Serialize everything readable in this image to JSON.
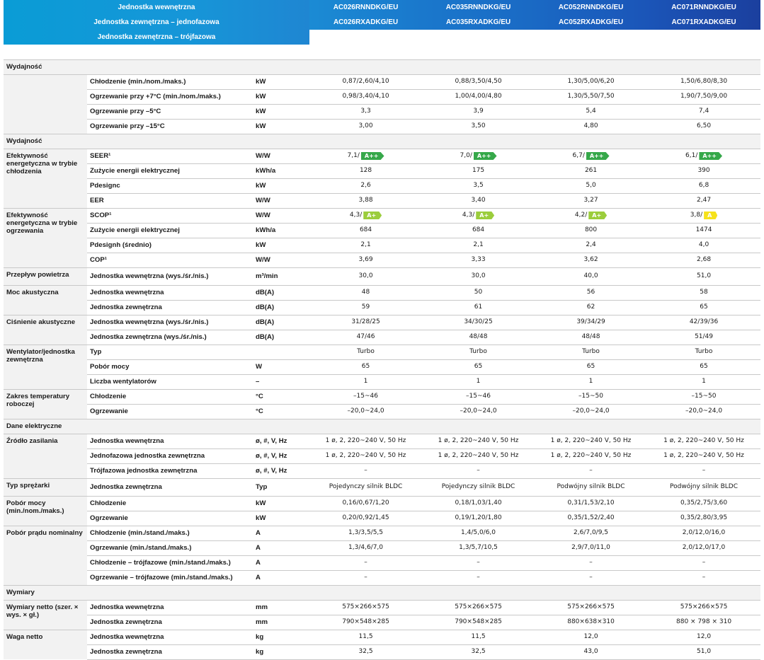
{
  "header": {
    "labels": [
      "Jednostka wewnętrzna",
      "Jednostka zewnętrzna – jednofazowa",
      "Jednostka zewnętrzna – trójfazowa"
    ],
    "models": [
      {
        "indoor": "AC026RNNDKG/EU",
        "outdoor": "AC026RXADKG/EU"
      },
      {
        "indoor": "AC035RNNDKG/EU",
        "outdoor": "AC035RXADKG/EU"
      },
      {
        "indoor": "AC052RNNDKG/EU",
        "outdoor": "AC052RXADKG/EU"
      },
      {
        "indoor": "AC071RNNDKG/EU",
        "outdoor": "AC071RXADKG/EU"
      }
    ]
  },
  "colors": {
    "badge_a_plus_plus": "#36a84a",
    "badge_a_plus": "#9bcd3c",
    "badge_a": "#f6e21a",
    "header_blue": "#1b55b8",
    "header_cyan": "#0a9cd6"
  },
  "sections": [
    {
      "title": "Wydajność",
      "groups": [
        {
          "label": "",
          "rows": [
            {
              "param": "Chłodzenie (min./nom./maks.)",
              "unit": "kW",
              "values": [
                "0,87/2,60/4,10",
                "0,88/3,50/4,50",
                "1,30/5,00/6,20",
                "1,50/6,80/8,30"
              ]
            },
            {
              "param": "Ogrzewanie przy +7°C (min./nom./maks.)",
              "unit": "kW",
              "values": [
                "0,98/3,40/4,10",
                "1,00/4,00/4,80",
                "1,30/5,50/7,50",
                "1,90/7,50/9,00"
              ]
            },
            {
              "param": "Ogrzewanie przy –5°C",
              "unit": "kW",
              "values": [
                "3,3",
                "3,9",
                "5,4",
                "7,4"
              ]
            },
            {
              "param": "Ogrzewanie przy –15°C",
              "unit": "kW",
              "values": [
                "3,00",
                "3,50",
                "4,80",
                "6,50"
              ]
            }
          ]
        }
      ]
    },
    {
      "title": "Wydajność",
      "groups": [
        {
          "label": "Efektywność energetyczna w trybie chłodzenia",
          "rows": [
            {
              "param": "SEER¹",
              "unit": "W/W",
              "values": [
                "7,1/",
                "7,0/",
                "6,7/",
                "6,1/"
              ],
              "badges": [
                "A++",
                "A++",
                "A++",
                "A++"
              ],
              "badge_kind": [
                "app",
                "app",
                "app",
                "app"
              ]
            },
            {
              "param": "Zużycie energii elektrycznej",
              "unit": "kWh/a",
              "values": [
                "128",
                "175",
                "261",
                "390"
              ]
            },
            {
              "param": "Pdesignc",
              "unit": "kW",
              "values": [
                "2,6",
                "3,5",
                "5,0",
                "6,8"
              ]
            },
            {
              "param": "EER",
              "unit": "W/W",
              "values": [
                "3,88",
                "3,40",
                "3,27",
                "2,47"
              ]
            }
          ]
        },
        {
          "label": "Efektywność energetyczna w trybie ogrzewania",
          "rows": [
            {
              "param": "SCOP¹",
              "unit": "W/W",
              "values": [
                "4,3/",
                "4,3/",
                "4,2/",
                "3,8/"
              ],
              "badges": [
                "A+",
                "A+",
                "A+",
                "A"
              ],
              "badge_kind": [
                "ap",
                "ap",
                "ap",
                "a"
              ]
            },
            {
              "param": "Zużycie energii elektrycznej",
              "unit": "kWh/a",
              "values": [
                "684",
                "684",
                "800",
                "1474"
              ]
            },
            {
              "param": "Pdesignh (średnio)",
              "unit": "kW",
              "values": [
                "2,1",
                "2,1",
                "2,4",
                "4,0"
              ]
            },
            {
              "param": "COP¹",
              "unit": "W/W",
              "values": [
                "3,69",
                "3,33",
                "3,62",
                "2,68"
              ]
            }
          ]
        },
        {
          "label": "Przepływ powietrza",
          "rows": [
            {
              "param": "Jednostka wewnętrzna (wys./śr./nis.)",
              "unit": "m³/min",
              "values": [
                "30,0",
                "30,0",
                "40,0",
                "51,0"
              ]
            }
          ]
        },
        {
          "label": "Moc akustyczna",
          "rows": [
            {
              "param": "Jednostka wewnętrzna",
              "unit": "dB(A)",
              "values": [
                "48",
                "50",
                "56",
                "58"
              ]
            },
            {
              "param": "Jednostka zewnętrzna",
              "unit": "dB(A)",
              "values": [
                "59",
                "61",
                "62",
                "65"
              ]
            }
          ]
        },
        {
          "label": "Ciśnienie akustyczne",
          "rows": [
            {
              "param": "Jednostka wewnętrzna (wys./śr./nis.)",
              "unit": "dB(A)",
              "values": [
                "31/28/25",
                "34/30/25",
                "39/34/29",
                "42/39/36"
              ]
            },
            {
              "param": "Jednostka zewnętrzna (wys./śr./nis.)",
              "unit": "dB(A)",
              "values": [
                "47/46",
                "48/48",
                "48/48",
                "51/49"
              ]
            }
          ]
        },
        {
          "label": "Wentylator/jednostka zewnętrzna",
          "rows": [
            {
              "param": "Typ",
              "unit": "",
              "values": [
                "Turbo",
                "Turbo",
                "Turbo",
                "Turbo"
              ]
            },
            {
              "param": "Pobór mocy",
              "unit": "W",
              "values": [
                "65",
                "65",
                "65",
                "65"
              ]
            },
            {
              "param": "Liczba wentylatorów",
              "unit": "–",
              "values": [
                "1",
                "1",
                "1",
                "1"
              ]
            }
          ]
        },
        {
          "label": "Zakres temperatury roboczej",
          "rows": [
            {
              "param": "Chłodzenie",
              "unit": "°C",
              "values": [
                "–15~46",
                "–15~46",
                "–15~50",
                "–15~50"
              ]
            },
            {
              "param": "Ogrzewanie",
              "unit": "°C",
              "values": [
                "–20,0~24,0",
                "–20,0~24,0",
                "–20,0~24,0",
                "–20,0~24,0"
              ]
            }
          ]
        }
      ]
    },
    {
      "title": "Dane elektryczne",
      "groups": [
        {
          "label": "Źródło zasilania",
          "rows": [
            {
              "param": "Jednostka wewnętrzna",
              "unit": "ø, #, V, Hz",
              "values": [
                "1 ø, 2, 220~240 V, 50 Hz",
                "1 ø, 2, 220~240 V, 50 Hz",
                "1 ø, 2, 220~240 V, 50 Hz",
                "1 ø, 2, 220~240 V, 50 Hz"
              ]
            },
            {
              "param": "Jednofazowa jednostka zewnętrzna",
              "unit": "ø, #, V, Hz",
              "values": [
                "1 ø, 2, 220~240 V, 50 Hz",
                "1 ø, 2, 220~240 V, 50 Hz",
                "1 ø, 2, 220~240 V, 50 Hz",
                "1 ø, 2, 220~240 V, 50 Hz"
              ]
            },
            {
              "param": "Trójfazowa jednostka zewnętrzna",
              "unit": "ø, #, V, Hz",
              "values": [
                "–",
                "–",
                "–",
                "–"
              ]
            }
          ]
        },
        {
          "label": "Typ sprężarki",
          "rows": [
            {
              "param": "Jednostka zewnętrzna",
              "unit": "Typ",
              "values": [
                "Pojedynczy silnik BLDC",
                "Pojedynczy silnik BLDC",
                "Podwójny silnik BLDC",
                "Podwójny silnik BLDC"
              ]
            }
          ]
        },
        {
          "label": "Pobór mocy (min./nom./maks.)",
          "rows": [
            {
              "param": "Chłodzenie",
              "unit": "kW",
              "values": [
                "0,16/0,67/1,20",
                "0,18/1,03/1,40",
                "0,31/1,53/2,10",
                "0,35/2,75/3,60"
              ]
            },
            {
              "param": "Ogrzewanie",
              "unit": "kW",
              "values": [
                "0,20/0,92/1,45",
                "0,19/1,20/1,80",
                "0,35/1,52/2,40",
                "0,35/2,80/3,95"
              ]
            }
          ]
        },
        {
          "label": "Pobór prądu nominalny",
          "rows": [
            {
              "param": "Chłodzenie (min./stand./maks.)",
              "unit": "A",
              "values": [
                "1,3/3,5/5,5",
                "1,4/5,0/6,0",
                "2,6/7,0/9,5",
                "2,0/12,0/16,0"
              ]
            },
            {
              "param": "Ogrzewanie (min./stand./maks.)",
              "unit": "A",
              "values": [
                "1,3/4,6/7,0",
                "1,3/5,7/10,5",
                "2,9/7,0/11,0",
                "2,0/12,0/17,0"
              ]
            },
            {
              "param": "Chłodzenie – trójfazowe (min./stand./maks.)",
              "unit": "A",
              "values": [
                "–",
                "–",
                "–",
                "–"
              ]
            },
            {
              "param": "Ogrzewanie – trójfazowe (min./stand./maks.)",
              "unit": "A",
              "values": [
                "–",
                "–",
                "–",
                "–"
              ]
            }
          ]
        }
      ]
    },
    {
      "title": "Wymiary",
      "groups": [
        {
          "label": "Wymiary netto (szer. × wys. × gł.)",
          "rows": [
            {
              "param": "Jednostka wewnętrzna",
              "unit": "mm",
              "values": [
                "575×266×575",
                "575×266×575",
                "575×266×575",
                "575×266×575"
              ]
            },
            {
              "param": "Jednostka zewnętrzna",
              "unit": "mm",
              "values": [
                "790×548×285",
                "790×548×285",
                "880×638×310",
                "880 × 798 × 310"
              ]
            }
          ]
        },
        {
          "label": "Waga netto",
          "rows": [
            {
              "param": "Jednostka wewnętrzna",
              "unit": "kg",
              "values": [
                "11,5",
                "11,5",
                "12,0",
                "12,0"
              ]
            },
            {
              "param": "Jednostka zewnętrzna",
              "unit": "kg",
              "values": [
                "32,5",
                "32,5",
                "43,0",
                "51,0"
              ]
            }
          ]
        }
      ]
    }
  ]
}
